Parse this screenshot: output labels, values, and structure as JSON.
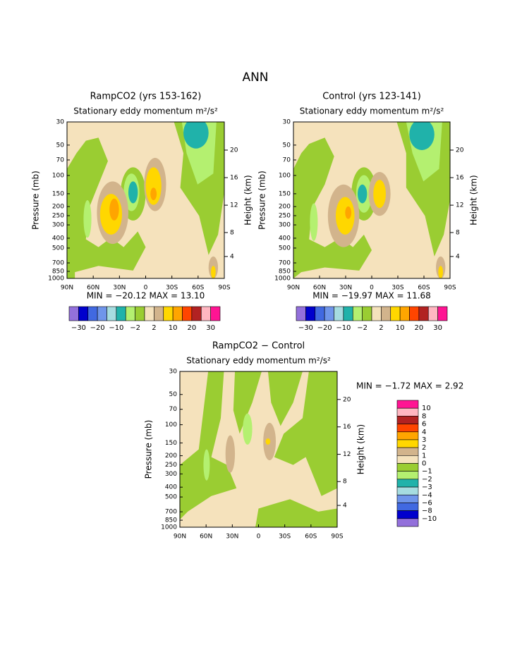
{
  "title": "ANN",
  "axes": {
    "y_label": "Pressure (mb)",
    "y2_label": "Height (km)",
    "pressure_ticks": [
      "30",
      "50",
      "70",
      "100",
      "150",
      "200",
      "250",
      "300",
      "400",
      "500",
      "700",
      "850",
      "1000"
    ],
    "height_ticks": [
      "20",
      "16",
      "12",
      "8",
      "4"
    ],
    "lat_ticks": [
      "90N",
      "60N",
      "30N",
      "0",
      "30S",
      "60S",
      "90S"
    ]
  },
  "panels": [
    {
      "title": "RampCO2 (yrs 153-162)",
      "subtitle": "Stationary eddy momentum m²/s²",
      "stats": "MIN = −20.12   MAX =  13.10"
    },
    {
      "title": "Control (yrs 123-141)",
      "subtitle": "Stationary eddy momentum m²/s²",
      "stats": "MIN = −19.97   MAX =  11.68"
    },
    {
      "title": "RampCO2 − Control",
      "subtitle": "Stationary eddy momentum m²/s²",
      "stats": "MIN =   −1.72   MAX =    2.92"
    }
  ],
  "colorbar_colors": [
    "#9370db",
    "#0000cd",
    "#4169e1",
    "#6f95ea",
    "#a6dce0",
    "#20b2aa",
    "#b4f070",
    "#9acd32",
    "#f5e2bc",
    "#d2b48c",
    "#ffd700",
    "#ffa500",
    "#ff4500",
    "#b22222",
    "#ffb6c1",
    "#ff1493"
  ],
  "colorbar_labels": [
    "−30",
    "−20",
    "−10",
    "−2",
    "2",
    "10",
    "20",
    "30"
  ],
  "diff_colorbar_labels": [
    "10",
    "8",
    "6",
    "4",
    "3",
    "2",
    "1",
    "0",
    "−1",
    "−2",
    "−3",
    "−4",
    "−6",
    "−8",
    "−10"
  ]
}
